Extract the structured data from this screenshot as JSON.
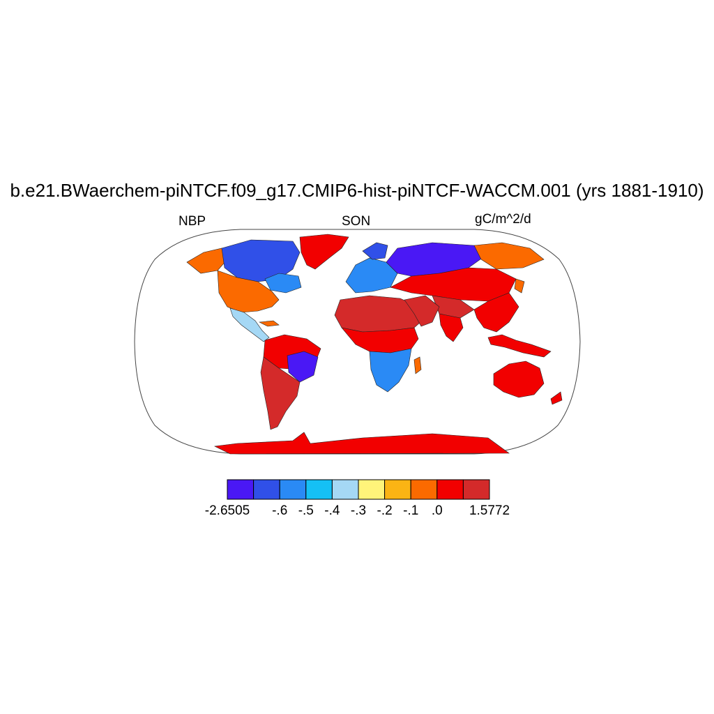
{
  "title": "b.e21.BWaerchem-piNTCF.f09_g17.CMIP6-hist-piNTCF-WACCM.001 (yrs 1881-1910)",
  "left_string": "NBP",
  "center_string": "SON",
  "right_string": "gC/m^2/d",
  "colorbar": {
    "colors": [
      "#4a18f5",
      "#3050e8",
      "#2a8af5",
      "#15c0f5",
      "#a5d8f5",
      "#fff47a",
      "#fbb414",
      "#fb6a00",
      "#f20000",
      "#d42a2a"
    ],
    "labels": [
      "-2.6505",
      "-.6",
      "-.5",
      "-.4",
      "-.3",
      "-.2",
      "-.1",
      ".0",
      "1.5772"
    ]
  },
  "map": {
    "projection": "Robinson",
    "ocean_color": "#ffffff",
    "regions": [
      {
        "name": "Antarctica",
        "class": 8
      },
      {
        "name": "Greenland",
        "class": 8
      },
      {
        "name": "Canada",
        "class": 0
      },
      {
        "name": "Alaska",
        "class": 7
      },
      {
        "name": "United States",
        "class": 7
      },
      {
        "name": "Mexico and Central America",
        "class": 4
      },
      {
        "name": "Amazon",
        "class": 8
      },
      {
        "name": "Brazil",
        "class": 0
      },
      {
        "name": "Southern South America",
        "class": 9
      },
      {
        "name": "North Africa",
        "class": 9
      },
      {
        "name": "Sahel",
        "class": 8
      },
      {
        "name": "Southern Africa",
        "class": 1
      },
      {
        "name": "Europe",
        "class": 2
      },
      {
        "name": "Siberia",
        "class": 0
      },
      {
        "name": "Central Asia",
        "class": 8
      },
      {
        "name": "Tibet",
        "class": 9
      },
      {
        "name": "Southeast Asia",
        "class": 8
      },
      {
        "name": "Australia",
        "class": 8
      },
      {
        "name": "Indonesia",
        "class": 8
      }
    ]
  }
}
